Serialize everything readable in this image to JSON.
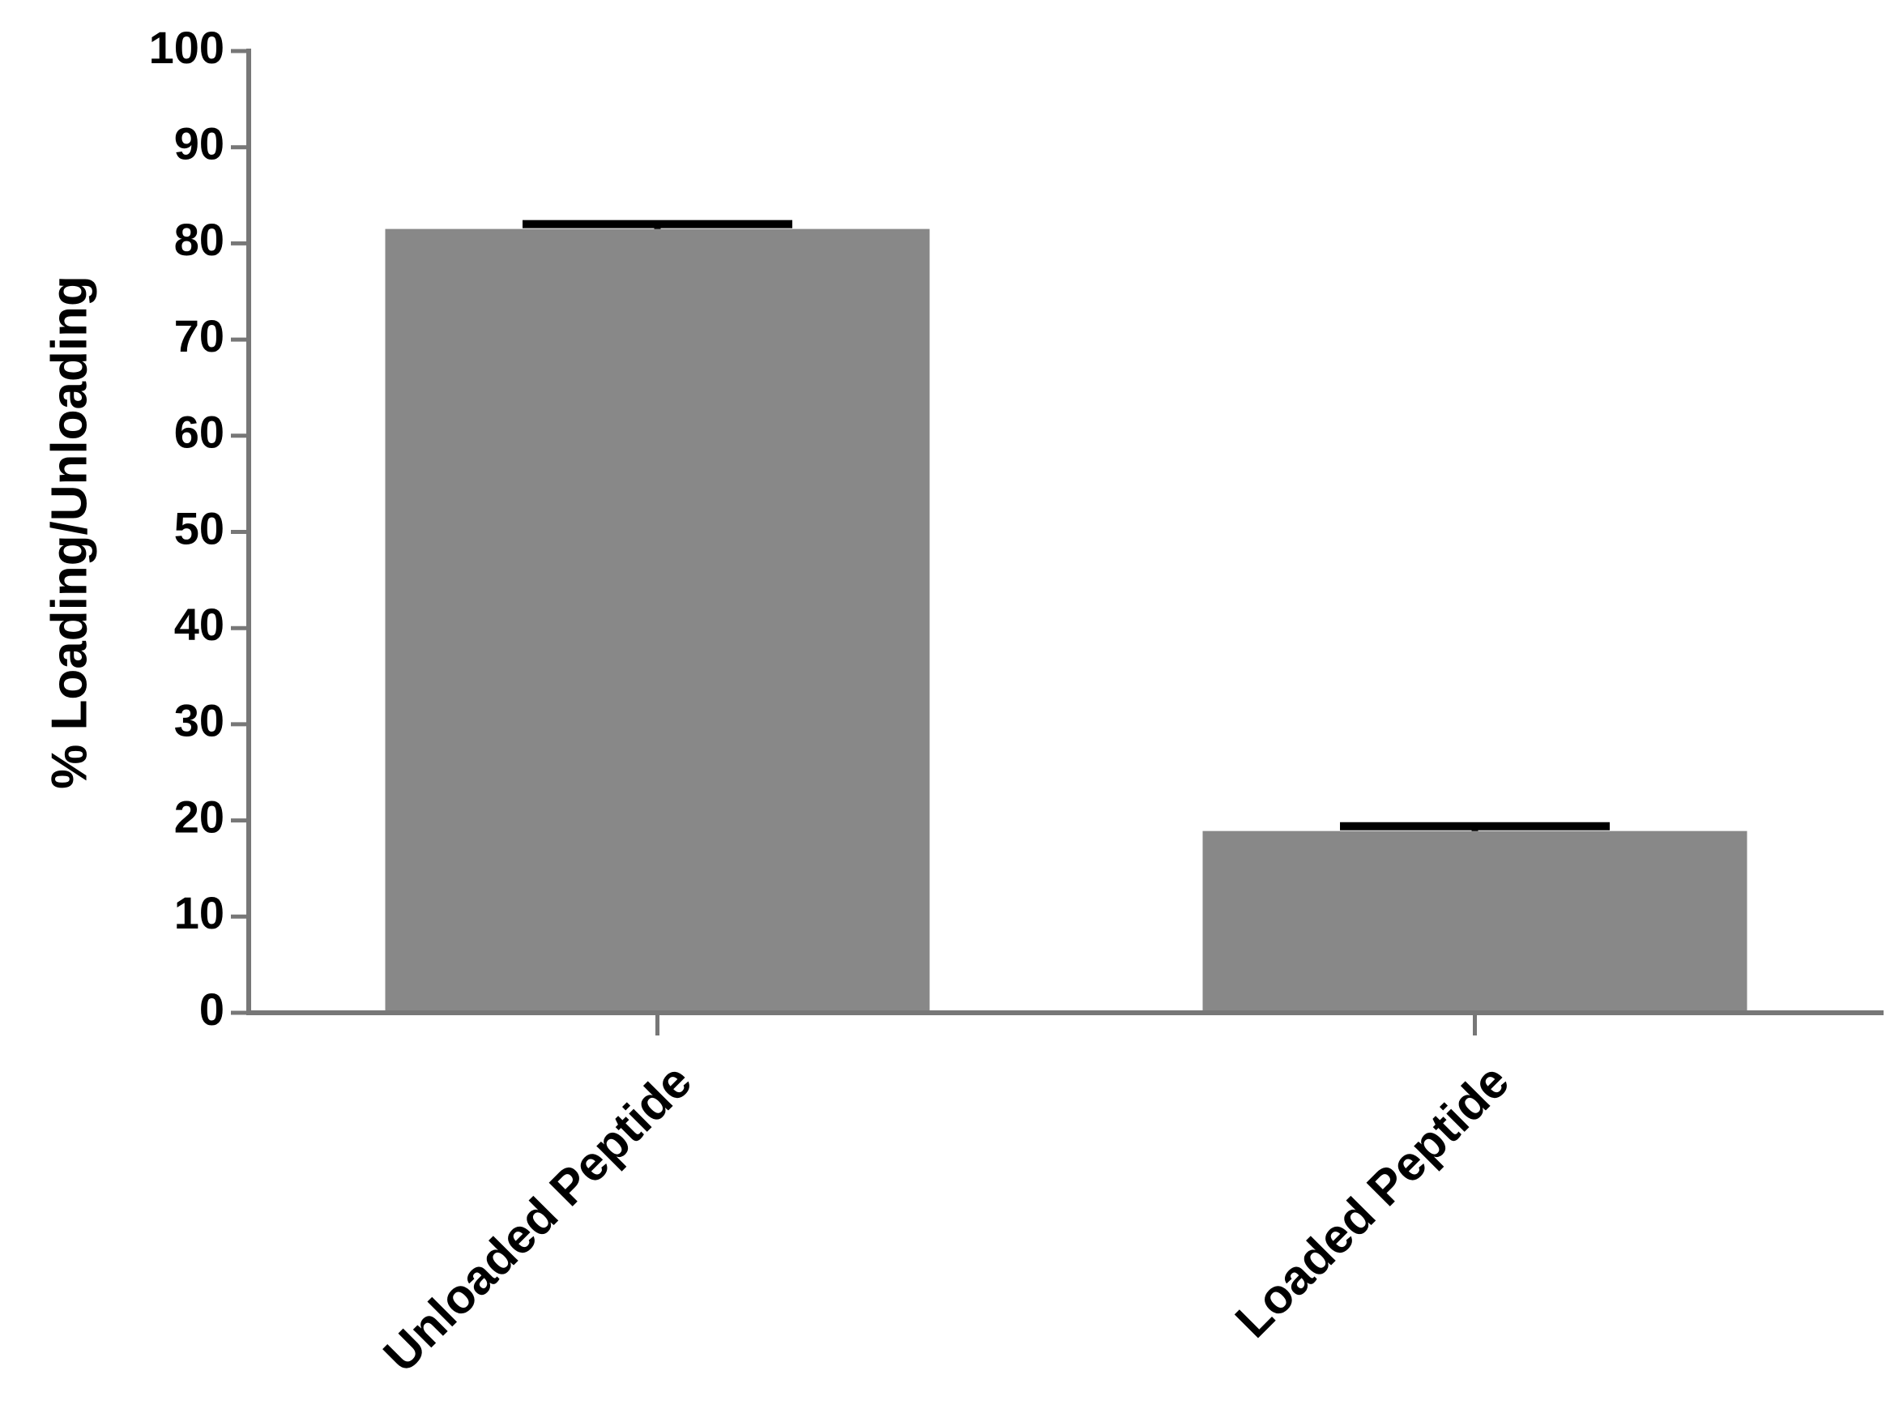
{
  "chart_data": {
    "type": "bar",
    "y_label": "% Loading/Unloading",
    "categories": [
      "Unloaded Peptide",
      "Loaded Peptide"
    ],
    "values": [
      81.5,
      18.9
    ],
    "errors": [
      0.5,
      0.5
    ],
    "color": "#888888",
    "error_color": "#000000",
    "ylim": [
      0,
      100
    ],
    "yticks": [
      0,
      10,
      20,
      30,
      40,
      50,
      60,
      70,
      80,
      90,
      100
    ],
    "grid": false
  }
}
